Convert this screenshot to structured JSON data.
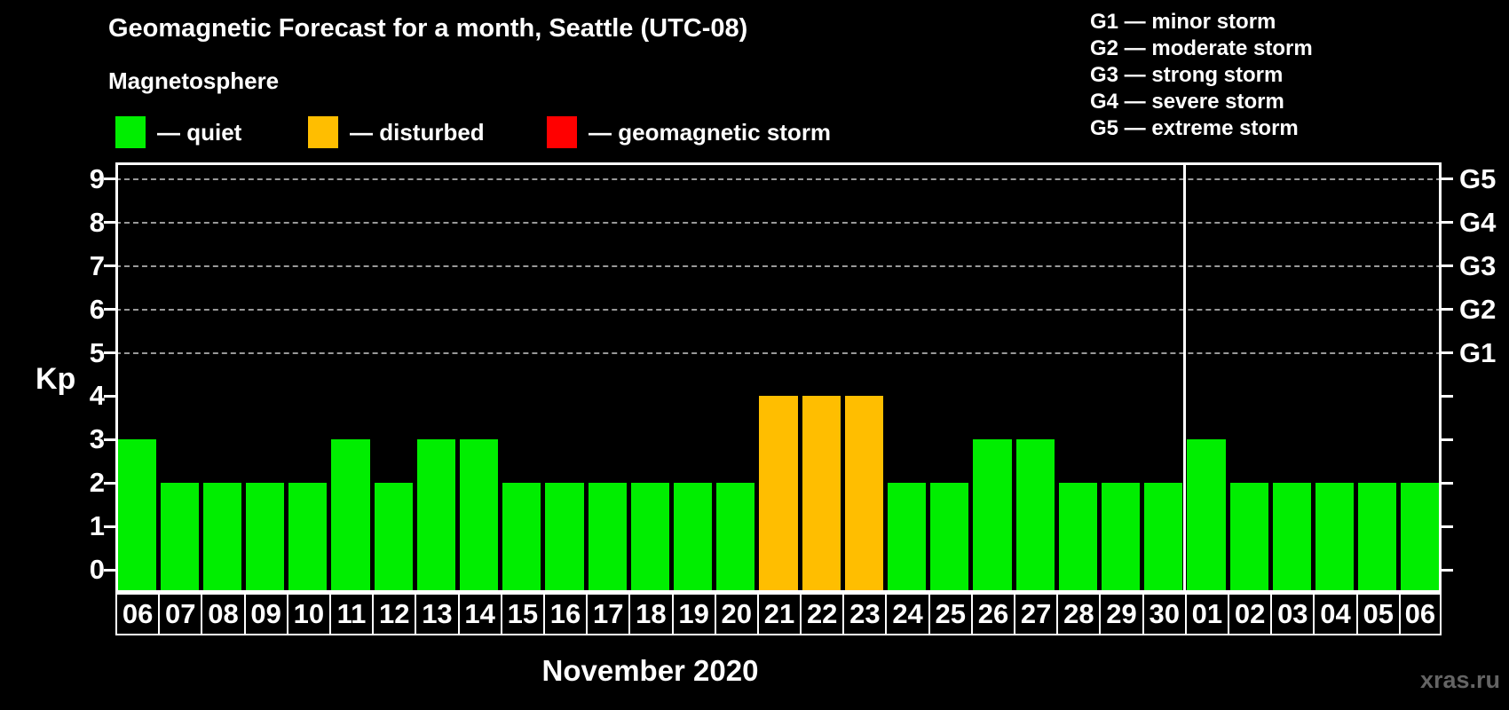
{
  "title": "Geomagnetic Forecast for a month, Seattle (UTC-08)",
  "subtitle": "Magnetosphere",
  "legend": {
    "items": [
      {
        "name": "quiet",
        "label": "— quiet",
        "color": "#00ee00"
      },
      {
        "name": "disturbed",
        "label": "— disturbed",
        "color": "#ffbe00"
      },
      {
        "name": "storm",
        "label": "— geomagnetic storm",
        "color": "#ff0000"
      }
    ]
  },
  "storm_legend": [
    "G1 — minor storm",
    "G2 — moderate storm",
    "G3 — strong storm",
    "G4 — severe storm",
    "G5 — extreme storm"
  ],
  "watermark": "xras.ru",
  "colors": {
    "quiet": "#00ee00",
    "disturbed": "#ffbe00",
    "storm": "#ff0000",
    "grid": "#999999",
    "axis": "#ffffff",
    "watermark": "#646464",
    "background": "#000000"
  },
  "chart_data": {
    "type": "bar",
    "title": "Geomagnetic Forecast for a month, Seattle (UTC-08)",
    "xlabel": "November 2020",
    "ylabel": "Kp",
    "ylim": [
      0,
      9.5
    ],
    "yticks": [
      0,
      1,
      2,
      3,
      4,
      5,
      6,
      7,
      8,
      9
    ],
    "grid_levels": [
      5,
      6,
      7,
      8,
      9
    ],
    "grid": "dashed horizontal at Kp 5-9 only",
    "legend_position": "top",
    "right_axis": [
      {
        "kp": 5,
        "label": "G1"
      },
      {
        "kp": 6,
        "label": "G2"
      },
      {
        "kp": 7,
        "label": "G3"
      },
      {
        "kp": 8,
        "label": "G4"
      },
      {
        "kp": 9,
        "label": "G5"
      }
    ],
    "categories": [
      "06",
      "07",
      "08",
      "09",
      "10",
      "11",
      "12",
      "13",
      "14",
      "15",
      "16",
      "17",
      "18",
      "19",
      "20",
      "21",
      "22",
      "23",
      "24",
      "25",
      "26",
      "27",
      "28",
      "29",
      "30",
      "01",
      "02",
      "03",
      "04",
      "05",
      "06"
    ],
    "values": [
      3,
      2,
      2,
      2,
      2,
      3,
      2,
      3,
      3,
      2,
      2,
      2,
      2,
      2,
      2,
      4,
      4,
      4,
      2,
      2,
      3,
      3,
      2,
      2,
      2,
      3,
      2,
      2,
      2,
      2,
      2
    ],
    "statuses": [
      "quiet",
      "quiet",
      "quiet",
      "quiet",
      "quiet",
      "quiet",
      "quiet",
      "quiet",
      "quiet",
      "quiet",
      "quiet",
      "quiet",
      "quiet",
      "quiet",
      "quiet",
      "disturbed",
      "disturbed",
      "disturbed",
      "quiet",
      "quiet",
      "quiet",
      "quiet",
      "quiet",
      "quiet",
      "quiet",
      "quiet",
      "quiet",
      "quiet",
      "quiet",
      "quiet",
      "quiet"
    ],
    "separator_index": 25,
    "separator_meaning": "month boundary between Nov 30 and Dec 01"
  }
}
